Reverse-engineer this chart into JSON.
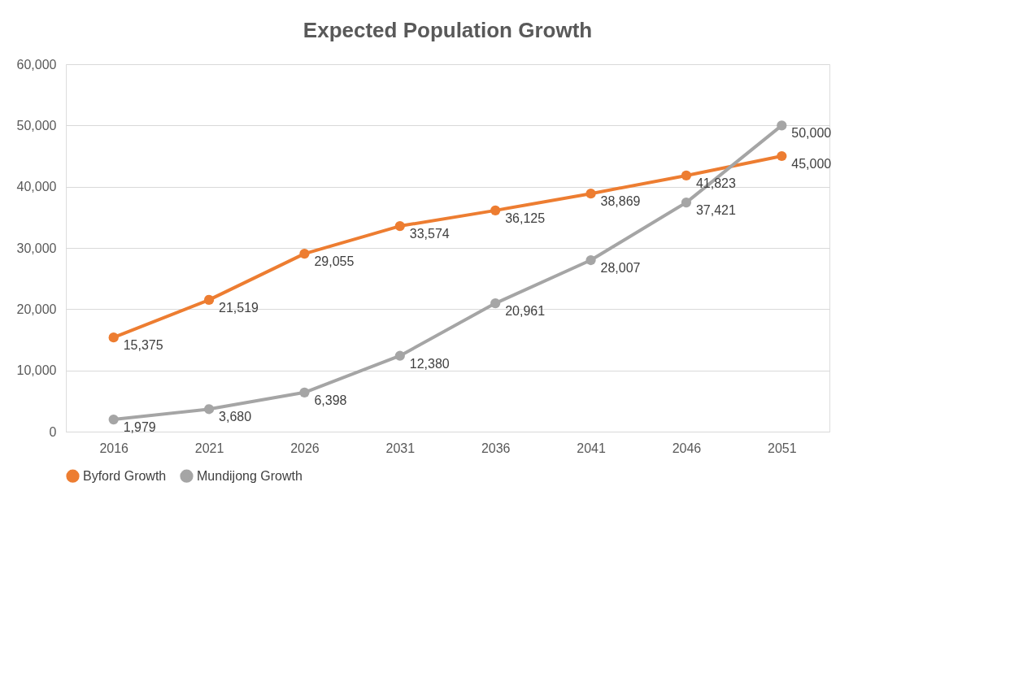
{
  "chart_data": {
    "type": "line",
    "title": "Expected Population Growth",
    "categories": [
      "2016",
      "2021",
      "2026",
      "2031",
      "2036",
      "2041",
      "2046",
      "2051"
    ],
    "series": [
      {
        "name": "Byford Growth",
        "color": "#ed7d31",
        "values": [
          15375,
          21519,
          29055,
          33574,
          36125,
          38869,
          41823,
          45000
        ],
        "value_labels": [
          "15,375",
          "21,519",
          "29,055",
          "33,574",
          "36,125",
          "38,869",
          "41,823",
          "45,000"
        ]
      },
      {
        "name": "Mundijong Growth",
        "color": "#a5a5a5",
        "values": [
          1979,
          3680,
          6398,
          12380,
          20961,
          28007,
          37421,
          50000
        ],
        "value_labels": [
          "1,979",
          "3,680",
          "6,398",
          "12,380",
          "20,961",
          "28,007",
          "37,421",
          "50,000"
        ]
      }
    ],
    "ylim": [
      0,
      60000
    ],
    "yticks": [
      0,
      {
        "value": 10000,
        "label": "10,000"
      },
      {
        "value": 20000,
        "label": "20,000"
      },
      {
        "value": 30000,
        "label": "30,000"
      },
      {
        "value": 40000,
        "label": "40,000"
      },
      {
        "value": 50000,
        "label": "50,000"
      },
      {
        "value": 60000,
        "label": "60,000"
      }
    ],
    "grid": "y",
    "legend": "bottom",
    "marker": "circle",
    "line_style": "solid"
  }
}
